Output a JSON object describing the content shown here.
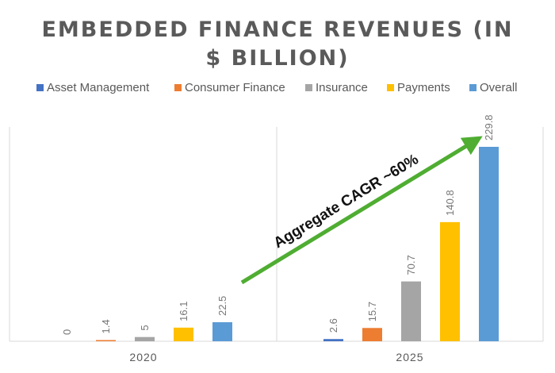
{
  "chart_data": {
    "type": "bar",
    "title_lines": [
      "EMBEDDED FINANCE REVENUES (IN",
      "$ BILLION)"
    ],
    "categories": [
      "2020",
      "2025"
    ],
    "series": [
      {
        "name": "Asset Management",
        "color": "#4472c4",
        "values": [
          0,
          2.6
        ]
      },
      {
        "name": "Consumer Finance",
        "color": "#ed7d31",
        "values": [
          1.4,
          15.7
        ]
      },
      {
        "name": "Insurance",
        "color": "#a5a5a5",
        "values": [
          5,
          70.7
        ]
      },
      {
        "name": "Payments",
        "color": "#ffc000",
        "values": [
          16.1,
          140.8
        ]
      },
      {
        "name": "Overall",
        "color": "#5b9bd5",
        "values": [
          22.5,
          229.8
        ]
      }
    ],
    "value_labels": [
      [
        "0",
        "1.4",
        "5",
        "16.1",
        "22.5"
      ],
      [
        "2.6",
        "15.7",
        "70.7",
        "140.8",
        "229.8"
      ]
    ],
    "ylim": [
      0,
      250
    ],
    "grid": false,
    "legend": "top",
    "annotation": {
      "text": "Aggregate CAGR ~60%",
      "color": "#4fad32",
      "from_category": "2020",
      "to_category": "2025"
    }
  }
}
